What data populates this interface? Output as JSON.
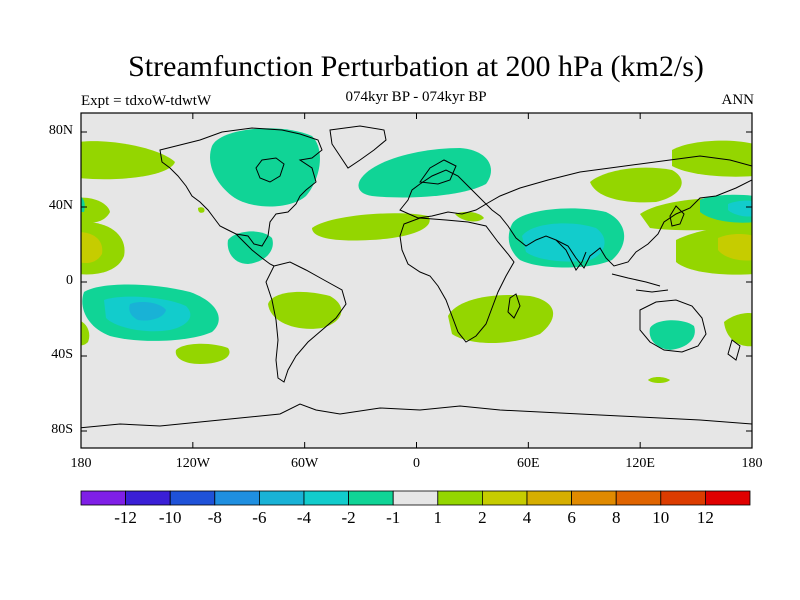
{
  "title": "Streamfunction Perturbation at 200 hPa (km2/s)",
  "subtitle": "074kyr BP - 074kyr BP",
  "left_label": "Expt = tdxoW-tdwtW",
  "right_label": "ANN",
  "yticks": [
    "80N",
    "40N",
    "0",
    "40S",
    "80S"
  ],
  "xticks": [
    "180",
    "120W",
    "60W",
    "0",
    "60E",
    "120E",
    "180"
  ],
  "colorbar": {
    "colors": [
      "#7f1fe6",
      "#3a1fd6",
      "#1f52d8",
      "#1f8fe0",
      "#19b2d6",
      "#12cccc",
      "#10d496",
      "#e6e6e6",
      "#94d600",
      "#c6cc00",
      "#d6ae00",
      "#e08a00",
      "#e06400",
      "#dc3c00",
      "#e00000"
    ],
    "labels": [
      "-12",
      "-10",
      "-8",
      "-6",
      "-4",
      "-2",
      "-1",
      "1",
      "2",
      "4",
      "6",
      "8",
      "10",
      "12"
    ]
  },
  "map_colors": {
    "background": "#e6e6e6",
    "pos1": "#94d600",
    "pos2": "#c6cc00",
    "neg1": "#10d496",
    "neg2": "#12cccc",
    "neg3": "#19b2d6"
  }
}
